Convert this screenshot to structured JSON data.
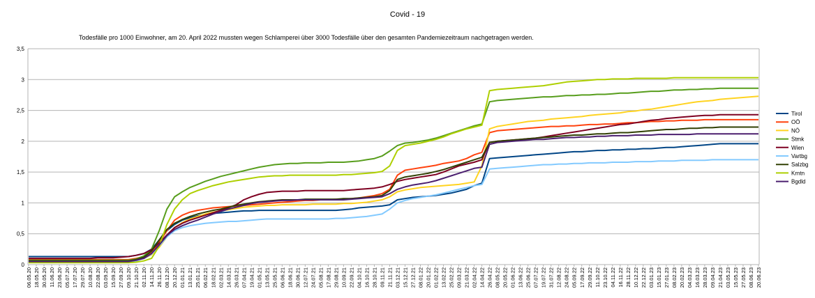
{
  "chart_data": {
    "type": "line",
    "title": "Covid - 19",
    "subtitle": "Todesfälle pro 1000 Einwohner, am 20. April 2022 mussten wegen Schlamperei über 3000 Todesfälle über den gesamten Pandemiezeitraum nachgetragen werden.",
    "xlabel": "",
    "ylabel": "",
    "ylim": [
      0,
      3.5
    ],
    "yticks": [
      "0",
      "0,5",
      "1",
      "1,5",
      "2",
      "2,5",
      "3",
      "3,5"
    ],
    "grid": true,
    "legend_position": "right",
    "x": [
      "06.05.20",
      "18.05.20",
      "30.05.20",
      "11.06.20",
      "23.06.20",
      "05.07.20",
      "17.07.20",
      "29.07.20",
      "10.08.20",
      "22.08.20",
      "03.09.20",
      "15.09.20",
      "27.09.20",
      "09.10.20",
      "21.10.20",
      "02.11.20",
      "14.11.20",
      "26.11.20",
      "08.12.20",
      "20.12.20",
      "01.01.21",
      "13.01.21",
      "25.01.21",
      "06.02.21",
      "18.02.21",
      "02.03.21",
      "14.03.21",
      "26.03.21",
      "07.04.21",
      "19.04.21",
      "01.05.21",
      "13.05.21",
      "25.05.21",
      "06.06.21",
      "18.06.21",
      "30.06.21",
      "12.07.21",
      "24.07.21",
      "05.08.21",
      "17.08.21",
      "29.08.21",
      "10.09.21",
      "22.09.21",
      "04.10.21",
      "16.10.21",
      "28.10.21",
      "09.11.21",
      "21.11.21",
      "03.12.21",
      "15.12.21",
      "27.12.21",
      "08.01.22",
      "20.01.22",
      "01.02.22",
      "13.02.22",
      "25.02.22",
      "09.03.22",
      "21.03.22",
      "02.04.22",
      "14.04.22",
      "26.04.22",
      "08.05.22",
      "20.05.22",
      "01.06.22",
      "13.06.22",
      "25.06.22",
      "07.07.22",
      "19.07.22",
      "31.07.22",
      "12.08.22",
      "24.08.22",
      "05.09.22",
      "17.09.22",
      "29.09.22",
      "11.10.22",
      "23.10.22",
      "04.11.22",
      "16.11.22",
      "28.11.22",
      "10.12.22",
      "22.12.22",
      "03.01.23",
      "15.01.23",
      "27.01.23",
      "08.02.23",
      "20.02.23",
      "04.03.23",
      "16.03.23",
      "28.03.23",
      "09.04.23",
      "21.04.23",
      "03.05.23",
      "15.05.23",
      "27.05.23",
      "08.06.23",
      "20.06.23"
    ],
    "series": [
      {
        "name": "Tirol",
        "color": "#004586",
        "values": [
          0.13,
          0.13,
          0.13,
          0.13,
          0.13,
          0.13,
          0.13,
          0.13,
          0.13,
          0.13,
          0.13,
          0.13,
          0.13,
          0.13,
          0.15,
          0.18,
          0.25,
          0.4,
          0.55,
          0.65,
          0.72,
          0.76,
          0.79,
          0.81,
          0.83,
          0.84,
          0.85,
          0.86,
          0.87,
          0.87,
          0.88,
          0.88,
          0.88,
          0.88,
          0.88,
          0.88,
          0.88,
          0.88,
          0.88,
          0.88,
          0.88,
          0.89,
          0.9,
          0.92,
          0.93,
          0.94,
          0.95,
          0.97,
          1.05,
          1.07,
          1.09,
          1.1,
          1.11,
          1.12,
          1.14,
          1.16,
          1.19,
          1.22,
          1.28,
          1.32,
          1.72,
          1.73,
          1.74,
          1.75,
          1.76,
          1.77,
          1.78,
          1.79,
          1.8,
          1.81,
          1.82,
          1.83,
          1.83,
          1.84,
          1.85,
          1.85,
          1.86,
          1.86,
          1.87,
          1.87,
          1.88,
          1.88,
          1.89,
          1.9,
          1.9,
          1.91,
          1.92,
          1.93,
          1.94,
          1.95,
          1.96,
          1.96,
          1.96,
          1.96,
          1.96,
          1.96
        ]
      },
      {
        "name": "OÖ",
        "color": "#ff420e",
        "values": [
          0.08,
          0.08,
          0.08,
          0.08,
          0.08,
          0.08,
          0.08,
          0.08,
          0.08,
          0.08,
          0.08,
          0.08,
          0.08,
          0.08,
          0.1,
          0.13,
          0.2,
          0.36,
          0.55,
          0.72,
          0.8,
          0.85,
          0.88,
          0.9,
          0.92,
          0.93,
          0.94,
          0.95,
          0.96,
          0.97,
          0.98,
          0.99,
          1.0,
          1.01,
          1.02,
          1.03,
          1.04,
          1.04,
          1.05,
          1.05,
          1.06,
          1.06,
          1.07,
          1.08,
          1.1,
          1.12,
          1.15,
          1.22,
          1.45,
          1.53,
          1.55,
          1.57,
          1.59,
          1.61,
          1.64,
          1.66,
          1.68,
          1.72,
          1.78,
          1.82,
          2.14,
          2.17,
          2.18,
          2.19,
          2.2,
          2.21,
          2.22,
          2.23,
          2.24,
          2.24,
          2.25,
          2.25,
          2.26,
          2.27,
          2.27,
          2.28,
          2.28,
          2.29,
          2.3,
          2.3,
          2.31,
          2.32,
          2.32,
          2.33,
          2.33,
          2.34,
          2.34,
          2.34,
          2.35,
          2.35,
          2.35,
          2.35,
          2.35,
          2.35,
          2.35,
          2.35
        ]
      },
      {
        "name": "NÖ",
        "color": "#ffd320",
        "values": [
          0.05,
          0.05,
          0.05,
          0.05,
          0.05,
          0.05,
          0.05,
          0.05,
          0.05,
          0.05,
          0.05,
          0.05,
          0.05,
          0.05,
          0.07,
          0.1,
          0.16,
          0.28,
          0.45,
          0.6,
          0.68,
          0.74,
          0.78,
          0.82,
          0.85,
          0.87,
          0.89,
          0.91,
          0.93,
          0.94,
          0.95,
          0.96,
          0.96,
          0.97,
          0.97,
          0.97,
          0.97,
          0.98,
          0.98,
          0.98,
          0.98,
          0.99,
          0.99,
          1.0,
          1.01,
          1.03,
          1.05,
          1.1,
          1.18,
          1.21,
          1.23,
          1.25,
          1.26,
          1.27,
          1.28,
          1.29,
          1.3,
          1.32,
          1.34,
          1.6,
          2.2,
          2.24,
          2.26,
          2.28,
          2.3,
          2.32,
          2.33,
          2.34,
          2.36,
          2.37,
          2.38,
          2.39,
          2.4,
          2.42,
          2.43,
          2.44,
          2.45,
          2.46,
          2.48,
          2.49,
          2.51,
          2.52,
          2.54,
          2.56,
          2.58,
          2.6,
          2.62,
          2.64,
          2.65,
          2.66,
          2.68,
          2.69,
          2.7,
          2.71,
          2.72,
          2.73
        ]
      },
      {
        "name": "Stmk",
        "color": "#579d1c",
        "values": [
          0.07,
          0.07,
          0.07,
          0.07,
          0.07,
          0.07,
          0.07,
          0.07,
          0.07,
          0.07,
          0.07,
          0.07,
          0.07,
          0.07,
          0.09,
          0.14,
          0.25,
          0.55,
          0.9,
          1.1,
          1.18,
          1.25,
          1.3,
          1.35,
          1.39,
          1.43,
          1.46,
          1.49,
          1.52,
          1.55,
          1.58,
          1.6,
          1.62,
          1.63,
          1.64,
          1.64,
          1.65,
          1.65,
          1.65,
          1.66,
          1.66,
          1.66,
          1.67,
          1.68,
          1.7,
          1.72,
          1.76,
          1.84,
          1.93,
          1.97,
          1.98,
          2.0,
          2.02,
          2.05,
          2.09,
          2.13,
          2.17,
          2.21,
          2.25,
          2.28,
          2.64,
          2.66,
          2.67,
          2.68,
          2.69,
          2.7,
          2.71,
          2.72,
          2.72,
          2.73,
          2.74,
          2.74,
          2.75,
          2.75,
          2.76,
          2.76,
          2.77,
          2.78,
          2.78,
          2.79,
          2.8,
          2.81,
          2.81,
          2.82,
          2.83,
          2.83,
          2.84,
          2.84,
          2.85,
          2.85,
          2.86,
          2.86,
          2.86,
          2.86,
          2.86,
          2.86
        ]
      },
      {
        "name": "Wien",
        "color": "#7e0021",
        "values": [
          0.1,
          0.1,
          0.1,
          0.1,
          0.1,
          0.1,
          0.1,
          0.1,
          0.1,
          0.11,
          0.11,
          0.11,
          0.12,
          0.13,
          0.15,
          0.18,
          0.24,
          0.35,
          0.48,
          0.6,
          0.67,
          0.72,
          0.76,
          0.8,
          0.84,
          0.88,
          0.92,
          0.97,
          1.05,
          1.1,
          1.14,
          1.17,
          1.18,
          1.19,
          1.19,
          1.19,
          1.2,
          1.2,
          1.2,
          1.2,
          1.2,
          1.2,
          1.21,
          1.22,
          1.23,
          1.24,
          1.26,
          1.3,
          1.35,
          1.38,
          1.4,
          1.42,
          1.44,
          1.46,
          1.5,
          1.55,
          1.6,
          1.63,
          1.66,
          1.7,
          1.98,
          2.0,
          2.01,
          2.02,
          2.03,
          2.04,
          2.05,
          2.07,
          2.09,
          2.11,
          2.13,
          2.15,
          2.17,
          2.19,
          2.21,
          2.23,
          2.25,
          2.27,
          2.28,
          2.3,
          2.32,
          2.34,
          2.35,
          2.37,
          2.38,
          2.39,
          2.4,
          2.41,
          2.42,
          2.42,
          2.43,
          2.43,
          2.43,
          2.43,
          2.43,
          2.43
        ]
      },
      {
        "name": "Vartbg",
        "color": "#83caff",
        "values": [
          0.04,
          0.04,
          0.04,
          0.04,
          0.04,
          0.04,
          0.04,
          0.04,
          0.04,
          0.04,
          0.04,
          0.04,
          0.04,
          0.04,
          0.06,
          0.1,
          0.17,
          0.3,
          0.45,
          0.55,
          0.6,
          0.63,
          0.65,
          0.67,
          0.68,
          0.69,
          0.7,
          0.7,
          0.71,
          0.72,
          0.73,
          0.74,
          0.74,
          0.74,
          0.74,
          0.74,
          0.74,
          0.74,
          0.74,
          0.74,
          0.75,
          0.75,
          0.76,
          0.77,
          0.78,
          0.8,
          0.82,
          0.9,
          1.0,
          1.04,
          1.07,
          1.09,
          1.11,
          1.13,
          1.16,
          1.19,
          1.22,
          1.25,
          1.28,
          1.3,
          1.55,
          1.56,
          1.57,
          1.58,
          1.59,
          1.6,
          1.61,
          1.62,
          1.62,
          1.63,
          1.63,
          1.64,
          1.64,
          1.65,
          1.65,
          1.65,
          1.66,
          1.66,
          1.66,
          1.67,
          1.67,
          1.67,
          1.68,
          1.68,
          1.68,
          1.69,
          1.69,
          1.69,
          1.69,
          1.7,
          1.7,
          1.7,
          1.7,
          1.7,
          1.7,
          1.7
        ]
      },
      {
        "name": "Salzbg",
        "color": "#314004",
        "values": [
          0.06,
          0.06,
          0.06,
          0.06,
          0.06,
          0.06,
          0.06,
          0.06,
          0.06,
          0.06,
          0.06,
          0.06,
          0.06,
          0.06,
          0.08,
          0.12,
          0.22,
          0.4,
          0.57,
          0.67,
          0.73,
          0.78,
          0.82,
          0.85,
          0.88,
          0.9,
          0.93,
          0.96,
          0.98,
          1.0,
          1.02,
          1.03,
          1.04,
          1.05,
          1.05,
          1.05,
          1.06,
          1.06,
          1.06,
          1.06,
          1.06,
          1.07,
          1.07,
          1.08,
          1.09,
          1.1,
          1.12,
          1.2,
          1.38,
          1.42,
          1.44,
          1.46,
          1.48,
          1.51,
          1.54,
          1.58,
          1.62,
          1.66,
          1.7,
          1.74,
          1.98,
          2.0,
          2.01,
          2.02,
          2.03,
          2.04,
          2.05,
          2.06,
          2.07,
          2.08,
          2.09,
          2.1,
          2.1,
          2.11,
          2.12,
          2.12,
          2.13,
          2.14,
          2.14,
          2.15,
          2.16,
          2.17,
          2.18,
          2.19,
          2.19,
          2.2,
          2.21,
          2.21,
          2.22,
          2.22,
          2.23,
          2.23,
          2.23,
          2.23,
          2.23,
          2.23
        ]
      },
      {
        "name": "Krntn",
        "color": "#aecf00",
        "values": [
          0.03,
          0.03,
          0.03,
          0.03,
          0.03,
          0.03,
          0.03,
          0.03,
          0.03,
          0.03,
          0.03,
          0.03,
          0.03,
          0.03,
          0.04,
          0.06,
          0.1,
          0.3,
          0.65,
          0.9,
          1.05,
          1.15,
          1.2,
          1.24,
          1.28,
          1.31,
          1.34,
          1.36,
          1.38,
          1.4,
          1.42,
          1.43,
          1.44,
          1.44,
          1.45,
          1.45,
          1.45,
          1.45,
          1.45,
          1.45,
          1.45,
          1.46,
          1.46,
          1.47,
          1.48,
          1.49,
          1.51,
          1.6,
          1.85,
          1.93,
          1.95,
          1.97,
          2.0,
          2.03,
          2.07,
          2.12,
          2.16,
          2.2,
          2.23,
          2.26,
          2.82,
          2.84,
          2.85,
          2.86,
          2.87,
          2.88,
          2.89,
          2.9,
          2.92,
          2.94,
          2.96,
          2.97,
          2.98,
          2.99,
          3.0,
          3.0,
          3.01,
          3.01,
          3.01,
          3.02,
          3.02,
          3.02,
          3.02,
          3.02,
          3.03,
          3.03,
          3.03,
          3.03,
          3.03,
          3.03,
          3.03,
          3.03,
          3.03,
          3.03,
          3.03,
          3.03
        ]
      },
      {
        "name": "Bgdld",
        "color": "#4b1f6f",
        "values": [
          0.05,
          0.05,
          0.05,
          0.05,
          0.05,
          0.05,
          0.05,
          0.05,
          0.05,
          0.05,
          0.05,
          0.05,
          0.05,
          0.05,
          0.07,
          0.1,
          0.18,
          0.32,
          0.47,
          0.57,
          0.63,
          0.68,
          0.72,
          0.77,
          0.82,
          0.86,
          0.9,
          0.93,
          0.96,
          0.99,
          1.01,
          1.02,
          1.03,
          1.04,
          1.04,
          1.05,
          1.05,
          1.05,
          1.05,
          1.05,
          1.05,
          1.05,
          1.06,
          1.07,
          1.08,
          1.09,
          1.1,
          1.15,
          1.22,
          1.26,
          1.29,
          1.31,
          1.33,
          1.36,
          1.4,
          1.44,
          1.48,
          1.52,
          1.56,
          1.58,
          1.95,
          1.98,
          1.99,
          2.0,
          2.01,
          2.02,
          2.03,
          2.03,
          2.04,
          2.05,
          2.06,
          2.06,
          2.07,
          2.07,
          2.08,
          2.08,
          2.09,
          2.09,
          2.09,
          2.1,
          2.1,
          2.1,
          2.11,
          2.11,
          2.11,
          2.11,
          2.11,
          2.12,
          2.12,
          2.12,
          2.12,
          2.12,
          2.12,
          2.12,
          2.12,
          2.12
        ]
      }
    ]
  }
}
